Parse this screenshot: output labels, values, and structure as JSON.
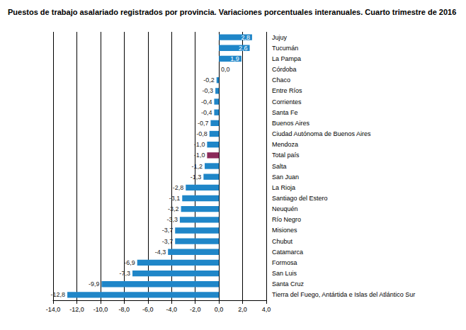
{
  "chart_data": {
    "type": "bar",
    "orientation": "horizontal",
    "title": "Puestos de trabajo asalariado registrados por provincia. Variaciones porcentuales interanuales. Cuarto trimestre de 2016",
    "categories": [
      "Jujuy",
      "Tucumán",
      "La Pampa",
      "Córdoba",
      "Chaco",
      "Entre Ríos",
      "Corrientes",
      "Santa Fe",
      "Buenos Aires",
      "Ciudad Autónoma de Buenos Aires",
      "Mendoza",
      "Total país",
      "Salta",
      "San Juan",
      "La Rioja",
      "Santiago del Estero",
      "Neuquén",
      "Río Negro",
      "Misiones",
      "Chubut",
      "Catamarca",
      "Formosa",
      "San Luis",
      "Santa Cruz",
      "Tierra del Fuego, Antártida e Islas del Atlántico Sur"
    ],
    "values": [
      2.8,
      2.6,
      1.9,
      0.0,
      -0.2,
      -0.3,
      -0.4,
      -0.4,
      -0.7,
      -0.8,
      -1.0,
      -1.0,
      -1.2,
      -1.3,
      -2.8,
      -3.1,
      -3.2,
      -3.3,
      -3.7,
      -3.7,
      -4.3,
      -6.9,
      -7.3,
      -9.9,
      -12.8
    ],
    "value_labels": [
      "2,8",
      "2,6",
      "1,9",
      "0,0",
      "-0,2",
      "-0,3",
      "-0,4",
      "-0,4",
      "-0,7",
      "-0,8",
      "-1,0",
      "-1,0",
      "-1,2",
      "-1,3",
      "-2,8",
      "-3,1",
      "-3,2",
      "-3,3",
      "-3,7",
      "-3,7",
      "-4,3",
      "-6,9",
      "-7,3",
      "-9,9",
      "-12,8"
    ],
    "colors": [
      "#1f86c8",
      "#1f86c8",
      "#1f86c8",
      "#1f86c8",
      "#1f86c8",
      "#1f86c8",
      "#1f86c8",
      "#1f86c8",
      "#1f86c8",
      "#1f86c8",
      "#1f86c8",
      "#8b2a5a",
      "#1f86c8",
      "#1f86c8",
      "#1f86c8",
      "#1f86c8",
      "#1f86c8",
      "#1f86c8",
      "#1f86c8",
      "#1f86c8",
      "#1f86c8",
      "#1f86c8",
      "#1f86c8",
      "#1f86c8",
      "#1f86c8"
    ],
    "data_labels": true,
    "grid": true,
    "xlim": [
      -14,
      4
    ],
    "xticks": [
      {
        "value": -14,
        "label": "-14,0"
      },
      {
        "value": -12,
        "label": "-12,0"
      },
      {
        "value": -10,
        "label": "-10,0"
      },
      {
        "value": -8,
        "label": "-8,0"
      },
      {
        "value": -6,
        "label": "-6,0"
      },
      {
        "value": -4,
        "label": "-4,0"
      },
      {
        "value": -2,
        "label": "-2,0"
      },
      {
        "value": 0,
        "label": "0,0"
      },
      {
        "value": 2,
        "label": "2,0"
      },
      {
        "value": 4,
        "label": "4,0"
      }
    ]
  }
}
